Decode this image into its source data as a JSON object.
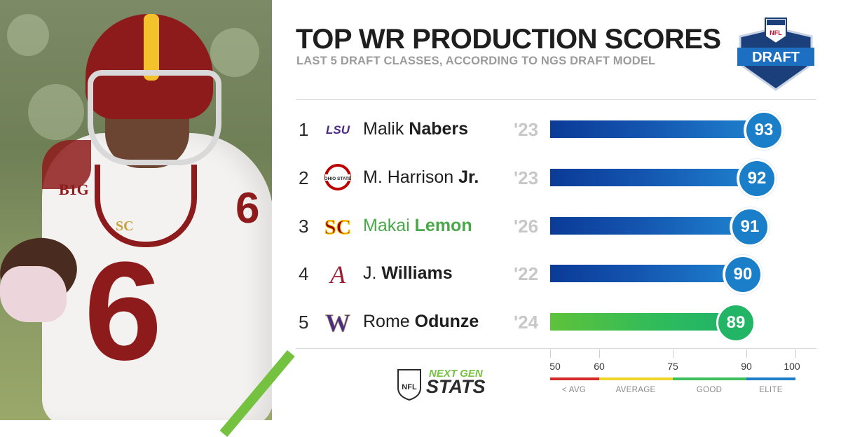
{
  "header": {
    "title": "TOP WR PRODUCTION SCORES",
    "subtitle": "LAST 5 DRAFT CLASSES, ACCORDING TO NGS DRAFT MODEL"
  },
  "draft_logo": {
    "top_text": "NFL",
    "main_text": "DRAFT"
  },
  "photo": {
    "jersey_number": "6",
    "conference_patch": "B1G",
    "chest_logo": "SC"
  },
  "rows": [
    {
      "rank": "1",
      "school": "LSU",
      "first": "Malik",
      "last": "Nabers",
      "year": "'23",
      "score": "93",
      "highlighted": false
    },
    {
      "rank": "2",
      "school": "Ohio State",
      "first": "M. Harrison",
      "last": "Jr.",
      "year": "'23",
      "score": "92",
      "highlighted": false
    },
    {
      "rank": "3",
      "school": "USC",
      "first": "Makai",
      "last": "Lemon",
      "year": "'26",
      "score": "91",
      "highlighted": true
    },
    {
      "rank": "4",
      "school": "Alabama",
      "first": "J.",
      "last": "Williams",
      "year": "'22",
      "score": "90",
      "highlighted": false
    },
    {
      "rank": "5",
      "school": "Washington",
      "first": "Rome",
      "last": "Odunze",
      "year": "'24",
      "score": "89",
      "highlighted": false
    }
  ],
  "school_logos": {
    "lsu_text": "LSU",
    "osu_text": "OHIO STATE",
    "usc_text": "SC",
    "alabama_text": "A",
    "washington_text": "W"
  },
  "branding": {
    "nfl_shield": "NFL",
    "ngs_line1": "NEXT GEN",
    "ngs_line2": "STATS"
  },
  "scale": {
    "ticks": [
      "50",
      "60",
      "75",
      "90",
      "100"
    ],
    "zones": [
      "< AVG",
      "AVERAGE",
      "GOOD",
      "ELITE"
    ]
  },
  "colors": {
    "bar_blue_start": "#0a3b97",
    "bar_blue_end": "#1f83cf",
    "bar_green": "#2ebb5c",
    "highlight_text": "#4aa84a",
    "zone_below_avg": "#d42a2a",
    "zone_average": "#f0d62a",
    "zone_good": "#3fbf5c",
    "zone_elite": "#1f7fc8"
  }
}
